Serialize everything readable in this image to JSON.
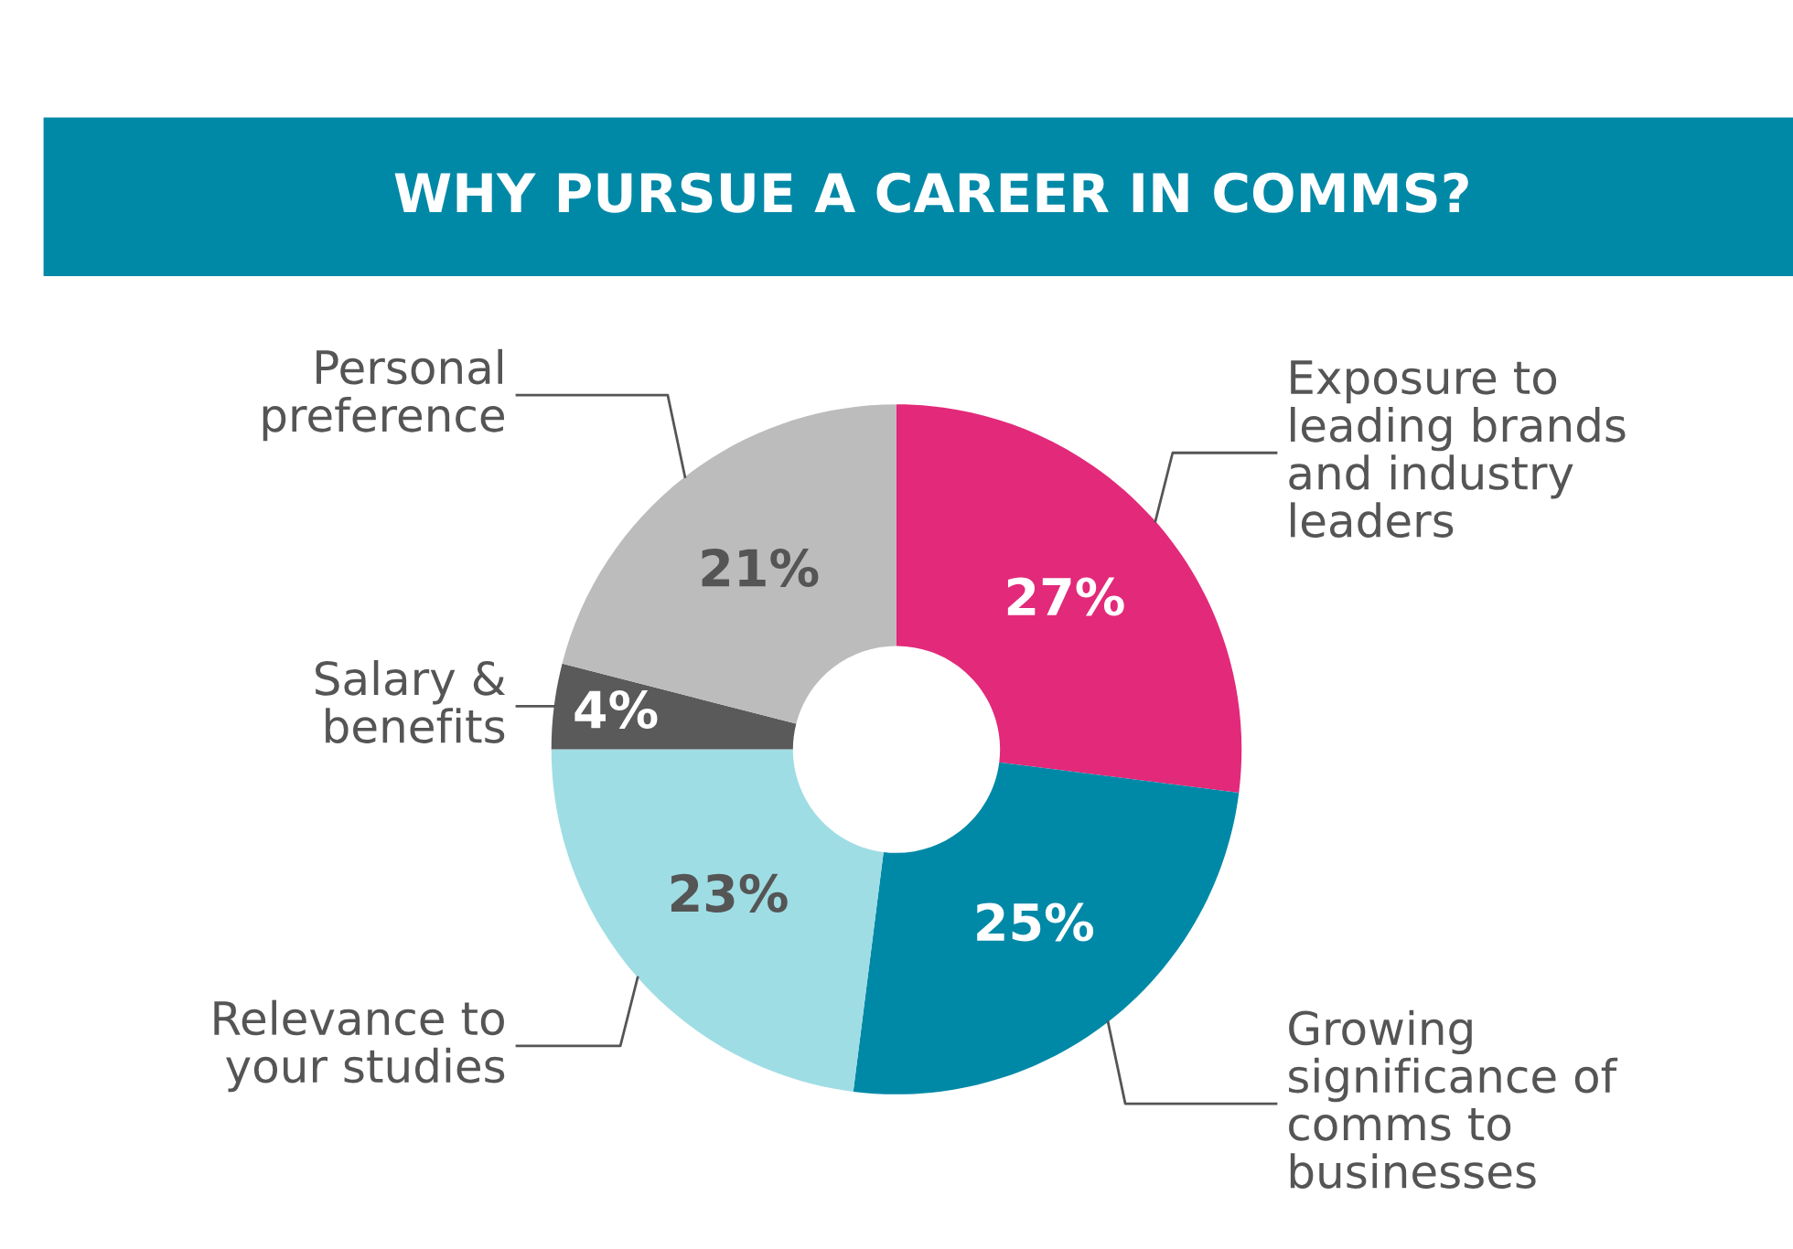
{
  "chart_data": {
    "type": "donut",
    "title": "WHY PURSUE A CAREER IN COMMS?",
    "categories": [
      "Exposure to\nleading brands\nand industry\nleaders",
      "Growing\nsignificance of\ncomms to\nbusinesses",
      "Relevance to\nyour studies",
      "Salary &\nbenefits",
      "Personal\npreference"
    ],
    "values": [
      27,
      25,
      23,
      4,
      21
    ],
    "colors": [
      "#e2297a",
      "#0089a7",
      "#9fdde4",
      "#5a5a5a",
      "#bcbcbc"
    ],
    "value_labels": [
      "27%",
      "25%",
      "23%",
      "4%",
      "21%"
    ],
    "legend": false
  }
}
